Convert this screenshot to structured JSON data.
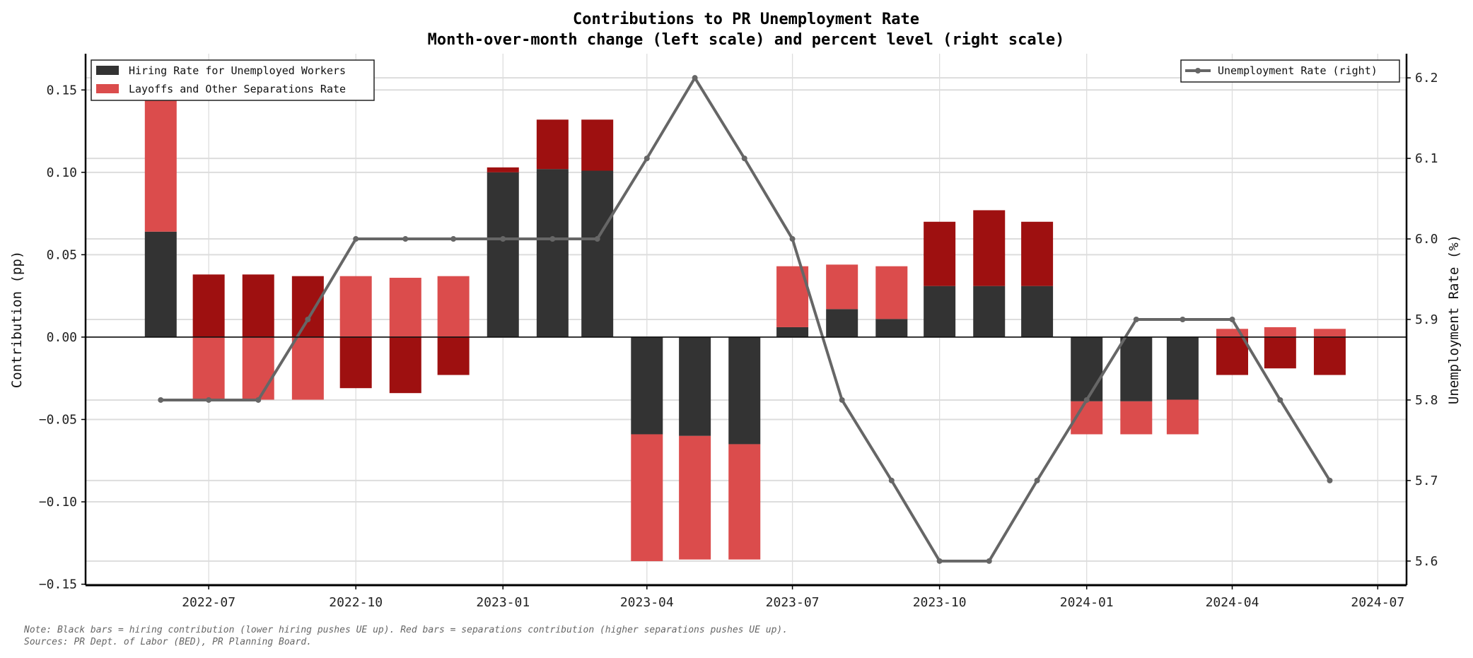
{
  "chart_data": {
    "type": "bar",
    "title": "Contributions to PR Unemployment Rate",
    "subtitle": "Month-over-month change (left scale) and percent level (right scale)",
    "ylabel": "Contribution (pp)",
    "ylabel_right": "Unemployment Rate (%)",
    "ylim": [
      -0.1506,
      0.172
    ],
    "ylim_right": [
      5.57,
      6.23
    ],
    "xlim": [
      "2022-04-15",
      "2024-07-19"
    ],
    "yticks": [
      "0.15",
      "0.10",
      "0.05",
      "0.00",
      "−0.05",
      "−0.10",
      "−0.15"
    ],
    "yticks_right": [
      "6.2",
      "6.1",
      "6.0",
      "5.9",
      "5.8",
      "5.7",
      "5.6"
    ],
    "xticks": [
      "2022-07",
      "2022-10",
      "2023-01",
      "2023-04",
      "2023-07",
      "2023-10",
      "2024-01",
      "2024-04",
      "2024-07"
    ],
    "grid": true,
    "stacked": true,
    "x": [
      "2022-06",
      "2022-07",
      "2022-08",
      "2022-09",
      "2022-10",
      "2022-11",
      "2022-12",
      "2023-01",
      "2023-02",
      "2023-03",
      "2023-04",
      "2023-05",
      "2023-06",
      "2023-07",
      "2023-08",
      "2023-09",
      "2023-10",
      "2023-11",
      "2023-12",
      "2024-01",
      "2024-02",
      "2024-03",
      "2024-04",
      "2024-05",
      "2024-06"
    ],
    "series": [
      {
        "name": "Hiring Rate for Unemployed Workers",
        "color": "#333333",
        "values": [
          0.064,
          0,
          0,
          0,
          0,
          0,
          0,
          0.1,
          0.102,
          0.101,
          -0.059,
          -0.06,
          -0.065,
          0.006,
          0.017,
          0.011,
          0.031,
          0.031,
          0.031,
          -0.039,
          -0.039,
          -0.038,
          0,
          0,
          0
        ]
      },
      {
        "name": "Layoffs and Other Separations Rate",
        "color": "#db4c4c",
        "values": [
          0.093,
          -0.038,
          -0.038,
          -0.038,
          0.037,
          0.036,
          0.037,
          0,
          0,
          0,
          -0.077,
          -0.075,
          -0.07,
          0.037,
          0.027,
          0.032,
          0,
          0,
          0,
          -0.02,
          -0.02,
          -0.021,
          0.005,
          0.006,
          0.005
        ]
      },
      {
        "color": "#9e1010",
        "values": [
          0,
          0.038,
          0.038,
          0.037,
          -0.031,
          -0.034,
          -0.023,
          0.003,
          0.03,
          0.031,
          0,
          0,
          0,
          0,
          0,
          0,
          0.039,
          0.046,
          0.039,
          0,
          0,
          0,
          -0.023,
          -0.019,
          -0.023
        ]
      }
    ],
    "line": {
      "name": "Unemployment Rate (right)",
      "color": "#666666",
      "axis": "right",
      "values": [
        5.8,
        5.8,
        5.8,
        5.9,
        6.0,
        6.0,
        6.0,
        6.0,
        6.0,
        6.0,
        6.1,
        6.2,
        6.1,
        6.0,
        5.8,
        5.7,
        5.6,
        5.6,
        5.7,
        5.8,
        5.9,
        5.9,
        5.9,
        5.8,
        5.7
      ]
    },
    "legend": [
      {
        "placement": "top-left"
      },
      {
        "placement": "top-right"
      }
    ]
  },
  "notes": [
    "Note: Black bars = hiring contribution (lower hiring pushes UE up). Red bars = separations contribution (higher separations pushes UE up).",
    "Sources: PR Dept. of Labor (BED), PR Planning Board."
  ]
}
